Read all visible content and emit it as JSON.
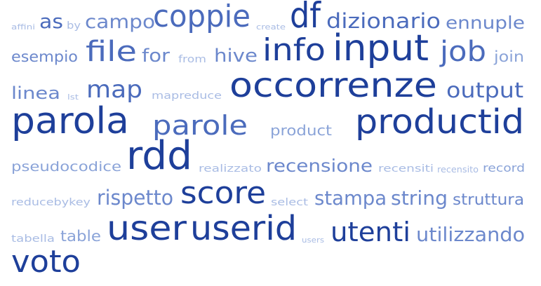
{
  "words": [
    {
      "text": "affini",
      "tier": 1
    },
    {
      "text": "as",
      "tier": 4
    },
    {
      "text": "by",
      "tier": 1
    },
    {
      "text": "campo",
      "tier": 3
    },
    {
      "text": "coppie",
      "tier": 4
    },
    {
      "text": "create",
      "tier": 1
    },
    {
      "text": "df",
      "tier": 5
    },
    {
      "text": "dizionario",
      "tier": 4
    },
    {
      "text": "ennuple",
      "tier": 3
    },
    {
      "text": "esempio",
      "tier": 3
    },
    {
      "text": "file",
      "tier": 4
    },
    {
      "text": "for",
      "tier": 3
    },
    {
      "text": "from",
      "tier": 1
    },
    {
      "text": "hive",
      "tier": 3
    },
    {
      "text": "info",
      "tier": 5
    },
    {
      "text": "input",
      "tier": 5
    },
    {
      "text": "job",
      "tier": 4
    },
    {
      "text": "join",
      "tier": 2
    },
    {
      "text": "linea",
      "tier": 3
    },
    {
      "text": "lst",
      "tier": 1
    },
    {
      "text": "map",
      "tier": 4
    },
    {
      "text": "mapreduce",
      "tier": 1
    },
    {
      "text": "occorrenze",
      "tier": 5
    },
    {
      "text": "output",
      "tier": 4
    },
    {
      "text": "parola",
      "tier": 5
    },
    {
      "text": "parole",
      "tier": 4
    },
    {
      "text": "product",
      "tier": 2
    },
    {
      "text": "productid",
      "tier": 5
    },
    {
      "text": "pseudocodice",
      "tier": 2
    },
    {
      "text": "rdd",
      "tier": 5
    },
    {
      "text": "realizzato",
      "tier": 1
    },
    {
      "text": "recensione",
      "tier": 3
    },
    {
      "text": "recensiti",
      "tier": 1
    },
    {
      "text": "recensito",
      "tier": 1
    },
    {
      "text": "record",
      "tier": 2
    },
    {
      "text": "reducebykey",
      "tier": 1
    },
    {
      "text": "rispetto",
      "tier": 3
    },
    {
      "text": "score",
      "tier": 5
    },
    {
      "text": "select",
      "tier": 1
    },
    {
      "text": "stampa",
      "tier": 3
    },
    {
      "text": "string",
      "tier": 3
    },
    {
      "text": "struttura",
      "tier": 3
    },
    {
      "text": "tabella",
      "tier": 1
    },
    {
      "text": "table",
      "tier": 2
    },
    {
      "text": "user",
      "tier": 5
    },
    {
      "text": "userid",
      "tier": 5
    },
    {
      "text": "users",
      "tier": 1
    },
    {
      "text": "utenti",
      "tier": 5
    },
    {
      "text": "utilizzando",
      "tier": 3
    },
    {
      "text": "voto",
      "tier": 5
    }
  ]
}
